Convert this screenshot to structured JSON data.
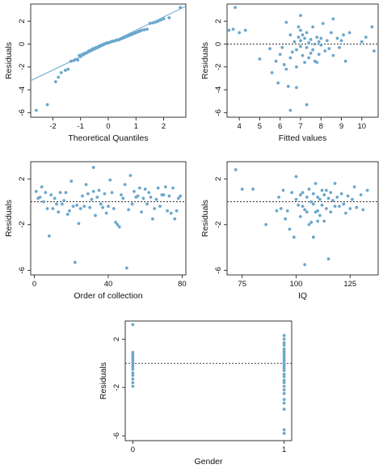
{
  "colors": {
    "points": "#6aa7cc",
    "frame": "#222222",
    "refline": "#333333"
  },
  "chart_data": [
    {
      "id": "qq",
      "type": "scatter",
      "xlabel": "Theoretical Quantiles",
      "ylabel": "Residuals",
      "xlim": [
        -2.8,
        2.8
      ],
      "ylim": [
        -6.4,
        3.5
      ],
      "xticks": [
        -2,
        -1,
        0,
        1,
        2
      ],
      "yticks": [
        -6,
        -4,
        -2,
        0,
        2
      ],
      "reference_line": {
        "type": "qq",
        "from": [
          -2.8,
          -3.2
        ],
        "to": [
          2.8,
          3.3
        ]
      },
      "points": [
        [
          -2.6,
          -5.8
        ],
        [
          -2.2,
          -5.3
        ],
        [
          -1.9,
          -3.3
        ],
        [
          -1.8,
          -2.9
        ],
        [
          -1.7,
          -2.5
        ],
        [
          -1.55,
          -2.3
        ],
        [
          -1.45,
          -2.2
        ],
        [
          -1.35,
          -1.5
        ],
        [
          -1.25,
          -1.45
        ],
        [
          -1.18,
          -1.35
        ],
        [
          -1.1,
          -1.4
        ],
        [
          -1.05,
          -1.0
        ],
        [
          -1.0,
          -1.1
        ],
        [
          -0.95,
          -0.9
        ],
        [
          -0.9,
          -0.95
        ],
        [
          -0.85,
          -0.8
        ],
        [
          -0.8,
          -0.8
        ],
        [
          -0.75,
          -0.7
        ],
        [
          -0.7,
          -0.6
        ],
        [
          -0.65,
          -0.55
        ],
        [
          -0.6,
          -0.5
        ],
        [
          -0.55,
          -0.4
        ],
        [
          -0.5,
          -0.4
        ],
        [
          -0.45,
          -0.3
        ],
        [
          -0.4,
          -0.3
        ],
        [
          -0.35,
          -0.2
        ],
        [
          -0.3,
          -0.15
        ],
        [
          -0.25,
          -0.1
        ],
        [
          -0.2,
          -0.05
        ],
        [
          -0.15,
          0.0
        ],
        [
          -0.1,
          0.05
        ],
        [
          -0.05,
          0.1
        ],
        [
          0.0,
          0.1
        ],
        [
          0.05,
          0.15
        ],
        [
          0.1,
          0.2
        ],
        [
          0.15,
          0.25
        ],
        [
          0.2,
          0.25
        ],
        [
          0.25,
          0.3
        ],
        [
          0.3,
          0.35
        ],
        [
          0.35,
          0.35
        ],
        [
          0.4,
          0.4
        ],
        [
          0.45,
          0.45
        ],
        [
          0.5,
          0.5
        ],
        [
          0.55,
          0.55
        ],
        [
          0.6,
          0.6
        ],
        [
          0.65,
          0.65
        ],
        [
          0.7,
          0.7
        ],
        [
          0.75,
          0.75
        ],
        [
          0.8,
          0.8
        ],
        [
          0.85,
          0.85
        ],
        [
          0.9,
          0.9
        ],
        [
          0.95,
          0.95
        ],
        [
          1.0,
          1.0
        ],
        [
          1.05,
          1.05
        ],
        [
          1.1,
          1.1
        ],
        [
          1.15,
          1.15
        ],
        [
          1.2,
          1.2
        ],
        [
          1.3,
          1.25
        ],
        [
          1.4,
          1.3
        ],
        [
          1.5,
          1.8
        ],
        [
          1.6,
          1.85
        ],
        [
          1.7,
          1.9
        ],
        [
          1.8,
          2.0
        ],
        [
          1.9,
          2.1
        ],
        [
          2.0,
          2.2
        ],
        [
          2.2,
          2.3
        ],
        [
          2.6,
          3.2
        ]
      ]
    },
    {
      "id": "fitted",
      "type": "scatter",
      "xlabel": "Fitted values",
      "ylabel": "Residuals",
      "xlim": [
        3.4,
        10.8
      ],
      "ylim": [
        -6.4,
        3.5
      ],
      "xticks": [
        4,
        5,
        6,
        7,
        8,
        9,
        10
      ],
      "yticks": [
        -6,
        -4,
        -2,
        0,
        2
      ],
      "reference_line": {
        "type": "hline",
        "y": 0
      },
      "points": [
        [
          3.7,
          1.3
        ],
        [
          3.8,
          3.2
        ],
        [
          4.0,
          1.0
        ],
        [
          3.5,
          1.2
        ],
        [
          4.3,
          1.2
        ],
        [
          5.0,
          -1.3
        ],
        [
          5.5,
          -0.4
        ],
        [
          5.6,
          -2.5
        ],
        [
          5.8,
          -1.5
        ],
        [
          5.9,
          -3.4
        ],
        [
          6.0,
          -0.9
        ],
        [
          6.1,
          -0.3
        ],
        [
          6.2,
          -1.8
        ],
        [
          6.3,
          -2.2
        ],
        [
          6.3,
          1.9
        ],
        [
          6.4,
          -3.7
        ],
        [
          6.5,
          -1.2
        ],
        [
          6.5,
          0.8
        ],
        [
          6.6,
          -0.7
        ],
        [
          6.7,
          0.2
        ],
        [
          6.8,
          -0.5
        ],
        [
          6.8,
          -2.0
        ],
        [
          6.8,
          -3.8
        ],
        [
          6.9,
          1.5
        ],
        [
          6.9,
          0.6
        ],
        [
          7.0,
          -0.2
        ],
        [
          7.0,
          0.3
        ],
        [
          7.0,
          1.2
        ],
        [
          7.1,
          -1.0
        ],
        [
          7.1,
          0.8
        ],
        [
          7.2,
          0.5
        ],
        [
          7.2,
          -1.6
        ],
        [
          7.3,
          -0.3
        ],
        [
          7.3,
          1.0
        ],
        [
          7.3,
          -5.3
        ],
        [
          7.4,
          0.1
        ],
        [
          7.4,
          -1.2
        ],
        [
          7.5,
          0.4
        ],
        [
          7.5,
          -0.8
        ],
        [
          7.6,
          1.5
        ],
        [
          7.6,
          -0.5
        ],
        [
          7.7,
          0.0
        ],
        [
          7.7,
          -1.5
        ],
        [
          7.8,
          0.6
        ],
        [
          7.8,
          -1.6
        ],
        [
          7.9,
          0.2
        ],
        [
          7.9,
          -0.9
        ],
        [
          8.0,
          -0.1
        ],
        [
          8.0,
          0.5
        ],
        [
          8.1,
          1.8
        ],
        [
          8.2,
          -0.6
        ],
        [
          8.3,
          0.3
        ],
        [
          8.4,
          -0.4
        ],
        [
          8.5,
          1.0
        ],
        [
          8.6,
          2.2
        ],
        [
          8.6,
          -1.0
        ],
        [
          8.8,
          0.5
        ],
        [
          8.9,
          -0.3
        ],
        [
          9.0,
          0.3
        ],
        [
          9.1,
          0.8
        ],
        [
          9.2,
          -1.5
        ],
        [
          9.4,
          1.0
        ],
        [
          10.0,
          0.2
        ],
        [
          10.2,
          0.6
        ],
        [
          10.5,
          1.5
        ],
        [
          10.6,
          -0.6
        ],
        [
          7.0,
          2.5
        ],
        [
          6.5,
          -5.8
        ]
      ]
    },
    {
      "id": "order",
      "type": "scatter",
      "xlabel": "Order of collection",
      "ylabel": "Residuals",
      "xlim": [
        -2,
        82
      ],
      "ylim": [
        -6.4,
        3.5
      ],
      "xticks": [
        0,
        40,
        80
      ],
      "yticks": [
        -6,
        -2,
        2
      ],
      "reference_line": {
        "type": "hline",
        "y": 0
      },
      "points": [
        [
          1,
          0.9
        ],
        [
          2,
          0.3
        ],
        [
          3,
          0.4
        ],
        [
          4,
          1.3
        ],
        [
          5,
          0.0
        ],
        [
          6,
          0.8
        ],
        [
          7,
          -0.6
        ],
        [
          8,
          -3.0
        ],
        [
          9,
          0.6
        ],
        [
          10,
          -0.6
        ],
        [
          11,
          0.3
        ],
        [
          12,
          -0.2
        ],
        [
          13,
          -0.9
        ],
        [
          14,
          0.8
        ],
        [
          15,
          -0.2
        ],
        [
          16,
          0.1
        ],
        [
          17,
          0.8
        ],
        [
          18,
          -1.1
        ],
        [
          19,
          -0.8
        ],
        [
          20,
          1.8
        ],
        [
          21,
          -0.4
        ],
        [
          22,
          -5.3
        ],
        [
          23,
          -0.3
        ],
        [
          24,
          -1.9
        ],
        [
          25,
          -0.6
        ],
        [
          26,
          0.5
        ],
        [
          27,
          -0.4
        ],
        [
          28,
          1.5
        ],
        [
          29,
          0.7
        ],
        [
          30,
          -0.5
        ],
        [
          31,
          0.2
        ],
        [
          32,
          0.9
        ],
        [
          33,
          -1.2
        ],
        [
          34,
          0.4
        ],
        [
          35,
          1.0
        ],
        [
          36,
          -0.2
        ],
        [
          37,
          -0.5
        ],
        [
          38,
          0.7
        ],
        [
          39,
          -1.0
        ],
        [
          40,
          -0.4
        ],
        [
          41,
          1.9
        ],
        [
          42,
          0.8
        ],
        [
          43,
          -0.6
        ],
        [
          44,
          -1.8
        ],
        [
          45,
          -2.0
        ],
        [
          46,
          -2.2
        ],
        [
          47,
          0.6
        ],
        [
          48,
          0.3
        ],
        [
          49,
          1.5
        ],
        [
          50,
          -5.8
        ],
        [
          51,
          -0.7
        ],
        [
          52,
          2.3
        ],
        [
          53,
          -0.2
        ],
        [
          54,
          0.9
        ],
        [
          55,
          0.4
        ],
        [
          56,
          0.5
        ],
        [
          57,
          1.2
        ],
        [
          58,
          -0.9
        ],
        [
          59,
          0.3
        ],
        [
          60,
          1.1
        ],
        [
          61,
          -0.2
        ],
        [
          62,
          0.8
        ],
        [
          63,
          0.4
        ],
        [
          64,
          -1.5
        ],
        [
          65,
          -0.6
        ],
        [
          66,
          0.2
        ],
        [
          67,
          1.2
        ],
        [
          68,
          -0.4
        ],
        [
          69,
          0.6
        ],
        [
          70,
          0.6
        ],
        [
          71,
          1.3
        ],
        [
          72,
          -0.8
        ],
        [
          73,
          0.5
        ],
        [
          74,
          -1.0
        ],
        [
          75,
          1.2
        ],
        [
          76,
          -1.5
        ],
        [
          77,
          -0.8
        ],
        [
          78,
          0.3
        ],
        [
          79,
          0.5
        ],
        [
          32,
          3.0
        ]
      ]
    },
    {
      "id": "iq",
      "type": "scatter",
      "xlabel": "IQ",
      "ylabel": "Residuals",
      "xlim": [
        68,
        138
      ],
      "ylim": [
        -6.4,
        3.5
      ],
      "xticks": [
        75,
        100,
        125
      ],
      "yticks": [
        -6,
        -2,
        2
      ],
      "reference_line": {
        "type": "hline",
        "y": 0
      },
      "points": [
        [
          72,
          2.8
        ],
        [
          75,
          1.1
        ],
        [
          80,
          1.1
        ],
        [
          86,
          -2.0
        ],
        [
          91,
          -0.8
        ],
        [
          92,
          0.4
        ],
        [
          93,
          -0.6
        ],
        [
          94,
          1.0
        ],
        [
          95,
          -1.5
        ],
        [
          96,
          -0.8
        ],
        [
          97,
          -2.4
        ],
        [
          98,
          0.8
        ],
        [
          99,
          -3.1
        ],
        [
          100,
          0.2
        ],
        [
          101,
          -0.3
        ],
        [
          102,
          0.6
        ],
        [
          102,
          -1.3
        ],
        [
          103,
          -0.4
        ],
        [
          103,
          0.8
        ],
        [
          104,
          -5.5
        ],
        [
          104,
          -0.7
        ],
        [
          105,
          0.4
        ],
        [
          105,
          -0.9
        ],
        [
          106,
          1.1
        ],
        [
          106,
          -2.0
        ],
        [
          107,
          0.0
        ],
        [
          107,
          -1.8
        ],
        [
          108,
          -0.2
        ],
        [
          108,
          0.7
        ],
        [
          109,
          -0.9
        ],
        [
          109,
          1.6
        ],
        [
          110,
          0.4
        ],
        [
          110,
          -0.8
        ],
        [
          111,
          0.2
        ],
        [
          111,
          -1.2
        ],
        [
          112,
          1.0
        ],
        [
          112,
          -0.3
        ],
        [
          113,
          0.6
        ],
        [
          113,
          -1.7
        ],
        [
          114,
          -0.6
        ],
        [
          114,
          1.0
        ],
        [
          115,
          0.3
        ],
        [
          115,
          -5.0
        ],
        [
          116,
          -0.9
        ],
        [
          116,
          0.8
        ],
        [
          117,
          0.1
        ],
        [
          118,
          -0.4
        ],
        [
          118,
          1.6
        ],
        [
          119,
          0.4
        ],
        [
          120,
          -0.4
        ],
        [
          121,
          0.7
        ],
        [
          122,
          -0.2
        ],
        [
          123,
          -1.0
        ],
        [
          124,
          0.5
        ],
        [
          125,
          -0.6
        ],
        [
          126,
          0.2
        ],
        [
          127,
          1.3
        ],
        [
          128,
          -0.5
        ],
        [
          130,
          0.6
        ],
        [
          131,
          -0.7
        ],
        [
          133,
          1.0
        ],
        [
          108,
          -3.1
        ],
        [
          110,
          -1.7
        ],
        [
          100,
          2.2
        ]
      ]
    },
    {
      "id": "gender",
      "type": "scatter",
      "xlabel": "Gender",
      "ylabel": "Residuals",
      "xlim": [
        -0.05,
        1.05
      ],
      "ylim": [
        -6.4,
        3.5
      ],
      "xticks": [
        0,
        1
      ],
      "yticks": [
        -6,
        -2,
        2
      ],
      "reference_line": {
        "type": "hline",
        "y": 0
      },
      "points": [
        [
          0,
          3.2
        ],
        [
          0,
          0.9
        ],
        [
          0,
          0.7
        ],
        [
          0,
          0.5
        ],
        [
          0,
          0.3
        ],
        [
          0,
          0.1
        ],
        [
          0,
          -0.1
        ],
        [
          0,
          -0.3
        ],
        [
          0,
          -0.5
        ],
        [
          0,
          -0.8
        ],
        [
          0,
          -1.0
        ],
        [
          0,
          -1.3
        ],
        [
          0,
          -1.6
        ],
        [
          0,
          -1.9
        ],
        [
          1,
          2.3
        ],
        [
          1,
          2.0
        ],
        [
          1,
          1.7
        ],
        [
          1,
          1.5
        ],
        [
          1,
          1.2
        ],
        [
          1,
          1.0
        ],
        [
          1,
          0.8
        ],
        [
          1,
          0.6
        ],
        [
          1,
          0.4
        ],
        [
          1,
          0.2
        ],
        [
          1,
          0.0
        ],
        [
          1,
          -0.2
        ],
        [
          1,
          -0.4
        ],
        [
          1,
          -0.6
        ],
        [
          1,
          -0.9
        ],
        [
          1,
          -1.1
        ],
        [
          1,
          -1.4
        ],
        [
          1,
          -1.6
        ],
        [
          1,
          -1.9
        ],
        [
          1,
          -2.2
        ],
        [
          1,
          -2.5
        ],
        [
          1,
          -3.0
        ],
        [
          1,
          -3.3
        ],
        [
          1,
          -3.8
        ],
        [
          1,
          -5.5
        ],
        [
          1,
          -5.8
        ]
      ]
    }
  ]
}
